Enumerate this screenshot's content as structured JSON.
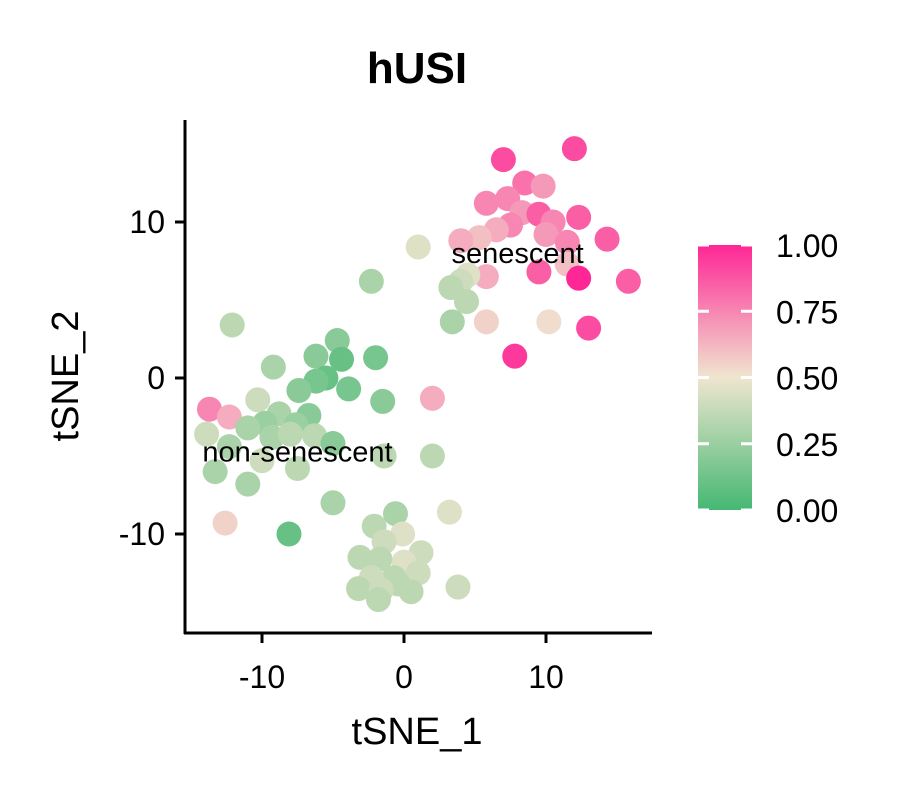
{
  "chart_data": {
    "type": "scatter",
    "title": "hUSI",
    "xlabel": "tSNE_1",
    "ylabel": "tSNE_2",
    "xlim": [
      -15.5,
      17.5
    ],
    "ylim": [
      -16.5,
      16.5
    ],
    "x_ticks": [
      -10,
      0,
      10
    ],
    "x_tick_labels": [
      "-10",
      "0",
      "10"
    ],
    "y_ticks": [
      -10,
      0,
      10
    ],
    "y_tick_labels": [
      "-10",
      "0",
      "10"
    ],
    "grid": false,
    "colorbar": {
      "position": "right",
      "range": [
        0,
        1
      ],
      "ticks": [
        1.0,
        0.75,
        0.5,
        0.25,
        0.0
      ],
      "tick_labels": [
        "1.00",
        "0.75",
        "0.50",
        "0.25",
        "0.00"
      ],
      "low_color": "#45b873",
      "mid_color": "#efe5cf",
      "high_color": "#ff2695"
    },
    "annotations": [
      {
        "text": "senescent",
        "x": 8,
        "y": 8
      },
      {
        "text": "non-senescent",
        "x": -7.5,
        "y": -4.7
      }
    ],
    "points": [
      {
        "x": 7.0,
        "y": 14.0,
        "v": 0.9
      },
      {
        "x": 12.0,
        "y": 14.7,
        "v": 0.9
      },
      {
        "x": 8.5,
        "y": 12.5,
        "v": 0.8
      },
      {
        "x": 9.8,
        "y": 12.3,
        "v": 0.7
      },
      {
        "x": 7.3,
        "y": 11.5,
        "v": 0.75
      },
      {
        "x": 5.8,
        "y": 11.2,
        "v": 0.75
      },
      {
        "x": 8.3,
        "y": 10.6,
        "v": 0.7
      },
      {
        "x": 9.5,
        "y": 10.5,
        "v": 0.85
      },
      {
        "x": 10.5,
        "y": 10.0,
        "v": 0.75
      },
      {
        "x": 12.3,
        "y": 10.3,
        "v": 0.85
      },
      {
        "x": 7.5,
        "y": 9.8,
        "v": 0.75
      },
      {
        "x": 6.5,
        "y": 9.5,
        "v": 0.65
      },
      {
        "x": 5.3,
        "y": 9.0,
        "v": 0.6
      },
      {
        "x": 4.0,
        "y": 8.8,
        "v": 0.65
      },
      {
        "x": 10.0,
        "y": 9.2,
        "v": 0.7
      },
      {
        "x": 11.5,
        "y": 8.7,
        "v": 0.75
      },
      {
        "x": 14.3,
        "y": 8.9,
        "v": 0.85
      },
      {
        "x": 1.0,
        "y": 8.4,
        "v": 0.45
      },
      {
        "x": 9.5,
        "y": 6.8,
        "v": 0.85
      },
      {
        "x": 11.5,
        "y": 7.3,
        "v": 0.6
      },
      {
        "x": 12.3,
        "y": 6.4,
        "v": 1.0
      },
      {
        "x": 15.8,
        "y": 6.2,
        "v": 0.85
      },
      {
        "x": 5.8,
        "y": 6.5,
        "v": 0.65
      },
      {
        "x": 4.5,
        "y": 6.6,
        "v": 0.45
      },
      {
        "x": 4.0,
        "y": 6.2,
        "v": 0.4
      },
      {
        "x": 3.3,
        "y": 5.8,
        "v": 0.35
      },
      {
        "x": 4.4,
        "y": 4.9,
        "v": 0.35
      },
      {
        "x": 3.4,
        "y": 3.6,
        "v": 0.3
      },
      {
        "x": 5.8,
        "y": 3.6,
        "v": 0.55
      },
      {
        "x": 10.2,
        "y": 3.6,
        "v": 0.52
      },
      {
        "x": 13.0,
        "y": 3.2,
        "v": 0.9
      },
      {
        "x": 7.8,
        "y": 1.4,
        "v": 0.95
      },
      {
        "x": -2.3,
        "y": 6.2,
        "v": 0.3
      },
      {
        "x": -12.1,
        "y": 3.4,
        "v": 0.35
      },
      {
        "x": -4.7,
        "y": 2.4,
        "v": 0.2
      },
      {
        "x": -6.2,
        "y": 1.4,
        "v": 0.2
      },
      {
        "x": -2.0,
        "y": 1.3,
        "v": 0.15
      },
      {
        "x": -4.4,
        "y": 1.2,
        "v": 0.1
      },
      {
        "x": -9.2,
        "y": 0.7,
        "v": 0.3
      },
      {
        "x": -5.5,
        "y": 0.0,
        "v": 0.1
      },
      {
        "x": -6.2,
        "y": -0.2,
        "v": 0.15
      },
      {
        "x": -7.4,
        "y": -0.8,
        "v": 0.2
      },
      {
        "x": -3.9,
        "y": -0.7,
        "v": 0.15
      },
      {
        "x": 2.0,
        "y": -1.3,
        "v": 0.65
      },
      {
        "x": -1.5,
        "y": -1.5,
        "v": 0.2
      },
      {
        "x": -10.3,
        "y": -1.4,
        "v": 0.4
      },
      {
        "x": -13.7,
        "y": -2.0,
        "v": 0.75
      },
      {
        "x": -12.3,
        "y": -2.5,
        "v": 0.65
      },
      {
        "x": -8.8,
        "y": -2.3,
        "v": 0.3
      },
      {
        "x": -6.7,
        "y": -2.4,
        "v": 0.2
      },
      {
        "x": -9.8,
        "y": -2.9,
        "v": 0.25
      },
      {
        "x": -7.6,
        "y": -3.0,
        "v": 0.25
      },
      {
        "x": -11.0,
        "y": -3.2,
        "v": 0.3
      },
      {
        "x": -13.9,
        "y": -3.6,
        "v": 0.4
      },
      {
        "x": -9.3,
        "y": -3.8,
        "v": 0.3
      },
      {
        "x": -8.0,
        "y": -3.6,
        "v": 0.35
      },
      {
        "x": -6.3,
        "y": -3.7,
        "v": 0.35
      },
      {
        "x": -5.0,
        "y": -4.2,
        "v": 0.2
      },
      {
        "x": -12.3,
        "y": -4.4,
        "v": 0.3
      },
      {
        "x": -10.0,
        "y": -5.3,
        "v": 0.4
      },
      {
        "x": -7.5,
        "y": -5.8,
        "v": 0.35
      },
      {
        "x": -13.3,
        "y": -6.0,
        "v": 0.3
      },
      {
        "x": -1.4,
        "y": -5.0,
        "v": 0.35
      },
      {
        "x": 2.0,
        "y": -5.0,
        "v": 0.35
      },
      {
        "x": -11.0,
        "y": -6.8,
        "v": 0.3
      },
      {
        "x": -5.0,
        "y": -8.0,
        "v": 0.3
      },
      {
        "x": -12.6,
        "y": -9.3,
        "v": 0.55
      },
      {
        "x": 3.2,
        "y": -8.6,
        "v": 0.45
      },
      {
        "x": -0.6,
        "y": -8.7,
        "v": 0.3
      },
      {
        "x": -8.1,
        "y": -10.0,
        "v": 0.1
      },
      {
        "x": -2.1,
        "y": -9.5,
        "v": 0.35
      },
      {
        "x": -0.1,
        "y": -10.0,
        "v": 0.45
      },
      {
        "x": -1.4,
        "y": -10.5,
        "v": 0.4
      },
      {
        "x": 1.2,
        "y": -11.2,
        "v": 0.4
      },
      {
        "x": 0.0,
        "y": -11.8,
        "v": 0.45
      },
      {
        "x": -3.1,
        "y": -11.5,
        "v": 0.35
      },
      {
        "x": -1.7,
        "y": -11.6,
        "v": 0.35
      },
      {
        "x": 1.0,
        "y": -12.5,
        "v": 0.4
      },
      {
        "x": -0.7,
        "y": -12.8,
        "v": 0.35
      },
      {
        "x": -2.3,
        "y": -12.8,
        "v": 0.4
      },
      {
        "x": -0.4,
        "y": -13.2,
        "v": 0.35
      },
      {
        "x": -3.2,
        "y": -13.5,
        "v": 0.35
      },
      {
        "x": -1.6,
        "y": -13.6,
        "v": 0.4
      },
      {
        "x": 0.5,
        "y": -13.7,
        "v": 0.35
      },
      {
        "x": 3.8,
        "y": -13.4,
        "v": 0.4
      },
      {
        "x": -1.8,
        "y": -14.2,
        "v": 0.35
      }
    ]
  }
}
